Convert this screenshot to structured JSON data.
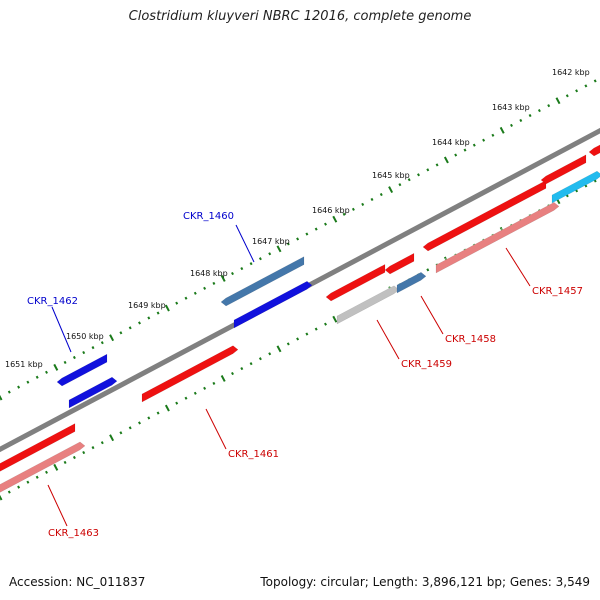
{
  "title": "Clostridium kluyveri NBRC 12016, complete genome",
  "footer": {
    "accession": "Accession: NC_011837",
    "summary": "Topology: circular; Length: 3,896,121 bp; Genes: 3,549"
  },
  "colors": {
    "backbone": "#808080",
    "tick": "#1a7a1a",
    "red": "#ee1111",
    "pink": "#e88080",
    "blue": "#1111dd",
    "steel": "#4477aa",
    "gray": "#c0c0c0",
    "cyan": "#22bbee",
    "label_red": "#cc0000",
    "label_blue": "#0000cc"
  },
  "kbp_labels": [
    "1642 kbp",
    "1643 kbp",
    "1644 kbp",
    "1645 kbp",
    "1646 kbp",
    "1647 kbp",
    "1648 kbp",
    "1649 kbp",
    "1650 kbp",
    "1651 kbp"
  ],
  "genes": [
    {
      "name": "CKR_1457",
      "color": "red"
    },
    {
      "name": "CKR_1458",
      "color": "red"
    },
    {
      "name": "CKR_1459",
      "color": "red"
    },
    {
      "name": "CKR_1460",
      "color": "blue"
    },
    {
      "name": "CKR_1461",
      "color": "red"
    },
    {
      "name": "CKR_1462",
      "color": "blue"
    },
    {
      "name": "CKR_1463",
      "color": "red"
    }
  ]
}
